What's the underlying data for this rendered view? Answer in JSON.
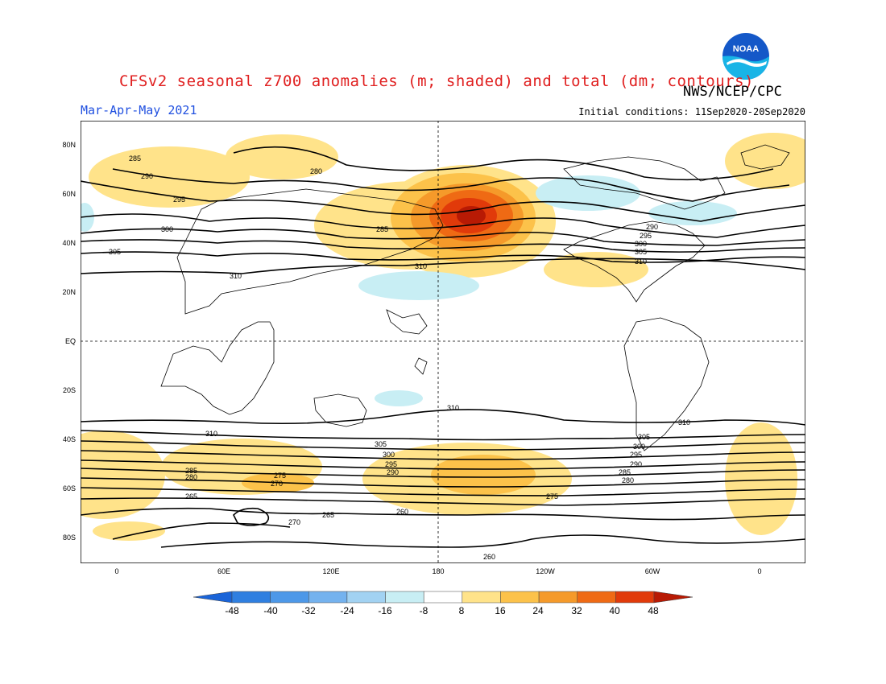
{
  "header": {
    "title": "CFSv2 seasonal z700 anomalies (m; shaded) and total (dm; contours)",
    "period": "Mar-Apr-May 2021",
    "initial_conditions": "Initial conditions: 11Sep2020-20Sep2020",
    "organization": "NWS/NCEP/CPC",
    "logo_text": "NOAA"
  },
  "axes": {
    "lat_labels": [
      "80N",
      "60N",
      "40N",
      "20N",
      "EQ",
      "20S",
      "40S",
      "60S",
      "80S"
    ],
    "lon_labels": [
      "0",
      "60E",
      "120E",
      "180",
      "120W",
      "60W",
      "0"
    ]
  },
  "colorbar": {
    "labels": [
      "-48",
      "-40",
      "-32",
      "-24",
      "-16",
      "-8",
      "8",
      "16",
      "24",
      "32",
      "40",
      "48"
    ],
    "colors": [
      "#1a64d8",
      "#2f7fe0",
      "#4d98e8",
      "#74b2ee",
      "#a2d2f2",
      "#c8eef4",
      "#ffffff",
      "#ffe38a",
      "#fcc24a",
      "#f59a2a",
      "#ef6a14",
      "#e13a0a",
      "#b81a04"
    ]
  },
  "contour_labels": [
    "280",
    "285",
    "290",
    "295",
    "300",
    "305",
    "310",
    "310",
    "310",
    "310",
    "305",
    "300",
    "295",
    "290",
    "285",
    "280",
    "275",
    "270",
    "265",
    "260",
    "260",
    "265",
    "270",
    "275",
    "280",
    "285",
    "290",
    "295",
    "300",
    "305",
    "310",
    "285",
    "290",
    "295",
    "300",
    "305",
    "310"
  ]
}
